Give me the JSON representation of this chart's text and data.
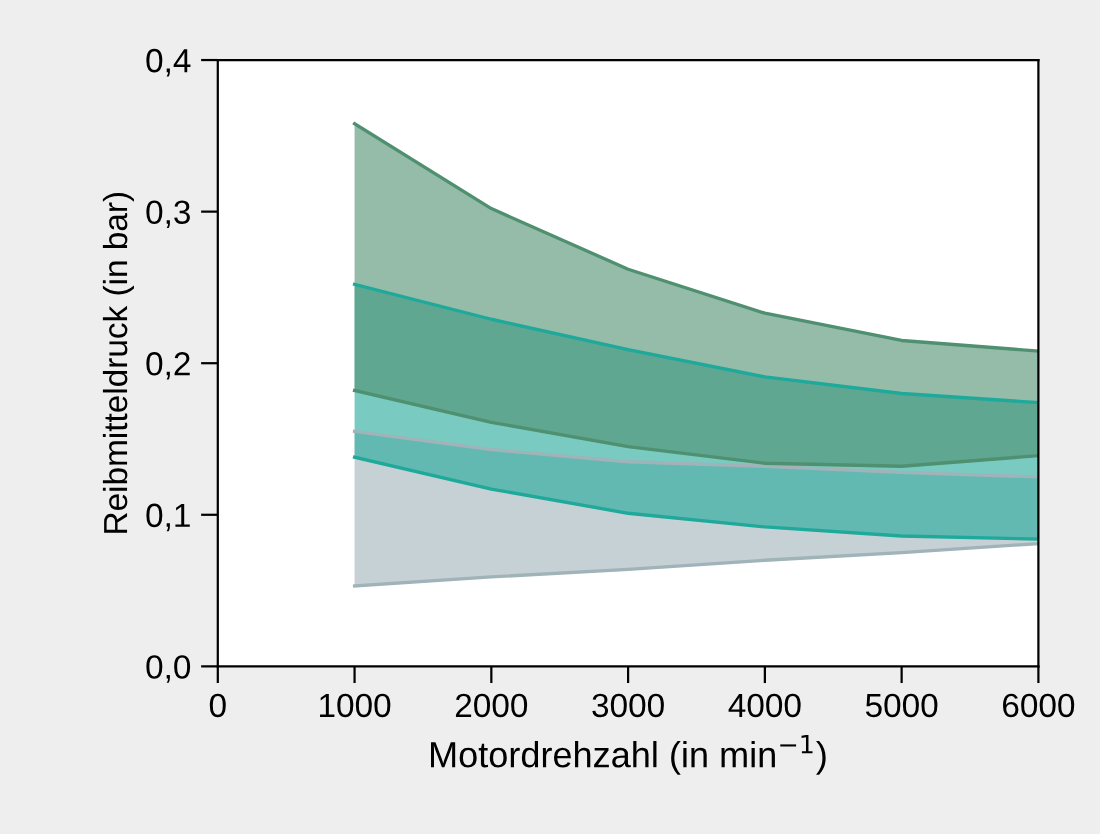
{
  "chart_data": {
    "type": "line",
    "xlabel": "Motordrehzahl (in min$^{−1}$)",
    "ylabel": "Reibmitteldruck (in bar)",
    "x": [
      1000,
      2000,
      3000,
      4000,
      5000,
      6000
    ],
    "xlim": [
      0,
      6000
    ],
    "xticks": [
      0,
      1000,
      2000,
      3000,
      4000,
      5000,
      6000
    ],
    "ylim": [
      0,
      0.4
    ],
    "yticks": [
      {
        "value": 0,
        "label": "0,0"
      },
      {
        "value": 0.1,
        "label": "0,1"
      },
      {
        "value": 0.2,
        "label": "0,2"
      },
      {
        "value": 0.3,
        "label": "0,3"
      },
      {
        "value": 0.4,
        "label": "0,4"
      }
    ],
    "grid": false,
    "legend": false,
    "series": [
      {
        "color": "#9fb3b9",
        "values": [
          0.155,
          0.143,
          0.135,
          0.132,
          0.128,
          0.125
        ],
        "upper": [
          0.155,
          0.143,
          0.135,
          0.132,
          0.128,
          0.125
        ],
        "lower": [
          0.053,
          0.059,
          0.064,
          0.07,
          0.075,
          0.081
        ]
      },
      {
        "color": "#9fb3b9",
        "values": [
          0.053,
          0.059,
          0.064,
          0.07,
          0.075,
          0.081
        ]
      },
      {
        "color": "#1fa99a",
        "values": [
          0.252,
          0.229,
          0.209,
          0.191,
          0.18,
          0.174
        ],
        "upper": [
          0.252,
          0.229,
          0.209,
          0.191,
          0.18,
          0.174
        ],
        "lower": [
          0.138,
          0.117,
          0.101,
          0.092,
          0.086,
          0.084
        ]
      },
      {
        "color": "#1fa99a",
        "values": [
          0.138,
          0.117,
          0.101,
          0.092,
          0.086,
          0.084
        ]
      },
      {
        "color": "#4f9070",
        "values": [
          0.358,
          0.302,
          0.262,
          0.233,
          0.215,
          0.208
        ],
        "upper": [
          0.358,
          0.302,
          0.262,
          0.233,
          0.215,
          0.208
        ],
        "lower": [
          0.182,
          0.161,
          0.145,
          0.134,
          0.132,
          0.139
        ]
      },
      {
        "color": "#4f9070",
        "values": [
          0.182,
          0.161,
          0.145,
          0.134,
          0.132,
          0.139
        ]
      }
    ]
  }
}
